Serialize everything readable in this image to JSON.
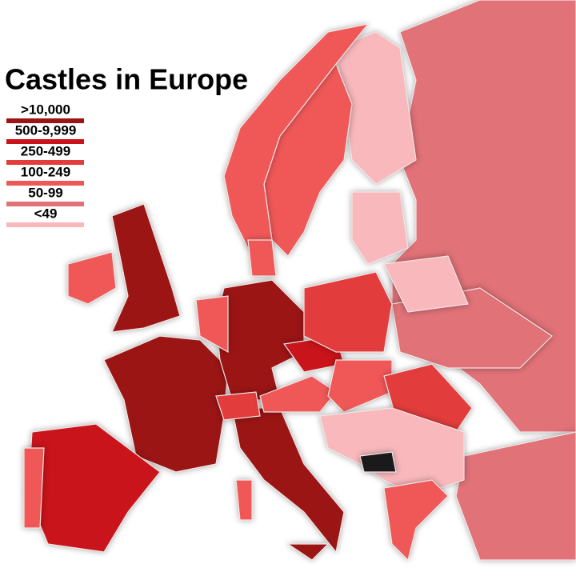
{
  "title": "Castles in Europe",
  "legend": [
    {
      "label": ">10,000",
      "color": "#9b1515"
    },
    {
      "label": "500-9,999",
      "color": "#c8141a"
    },
    {
      "label": "250-499",
      "color": "#e23c3c"
    },
    {
      "label": "100-249",
      "color": "#f05858"
    },
    {
      "label": "50-99",
      "color": "#e07278"
    },
    {
      "label": "<49",
      "color": "#f8b8bc"
    }
  ]
}
